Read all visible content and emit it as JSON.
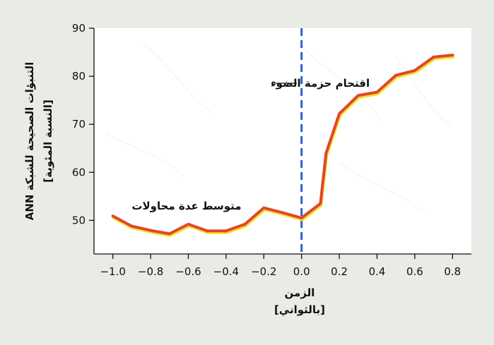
{
  "chart_data": {
    "type": "line",
    "x": [
      -1.0,
      -0.9,
      -0.8,
      -0.7,
      -0.6,
      -0.5,
      -0.4,
      -0.3,
      -0.2,
      -0.1,
      0.0,
      0.1,
      0.13,
      0.2,
      0.3,
      0.4,
      0.5,
      0.6,
      0.7,
      0.8
    ],
    "series": [
      {
        "values": [
          50.9,
          48.8,
          47.9,
          47.2,
          49.2,
          47.8,
          47.8,
          49.2,
          52.6,
          51.6,
          50.5,
          53.5,
          64.0,
          72.2,
          76.0,
          76.7,
          80.2,
          81.2,
          84.0,
          84.4
        ]
      }
    ],
    "xlim": [
      -1.1,
      0.9
    ],
    "ylim": [
      43,
      90
    ],
    "xticks": [
      -1.0,
      -0.8,
      -0.6,
      -0.4,
      -0.2,
      0.0,
      0.2,
      0.4,
      0.6,
      0.8
    ],
    "xtick_labels": [
      "−1.0",
      "−0.8",
      "−0.6",
      "−0.4",
      "−0.2",
      "0.0",
      "0.2",
      "0.4",
      "0.6",
      "0.8"
    ],
    "yticks": [
      50,
      60,
      70,
      80,
      90
    ],
    "ytick_labels": [
      "50",
      "60",
      "70",
      "80",
      "90"
    ],
    "xlabel_line1": "الزمن",
    "xlabel_line2": "[بالثواني]",
    "ylabel_line1": "التنبؤات الصحيحة للشبكة ANN",
    "ylabel_line2": "[النسبة المئوية]",
    "vline_x": 0.0,
    "annotations": {
      "event_label": "اقتحام حزمة الضوء",
      "series_label": "متوسط عدة محاولات"
    },
    "grid": false,
    "colors": {
      "line": "#e2452f",
      "line_shadow": "#f3e21c",
      "vline": "#2d5fd6",
      "axis": "#111111",
      "plot_bg": "#ffffff",
      "page_bg": "#e9ebe6"
    }
  }
}
